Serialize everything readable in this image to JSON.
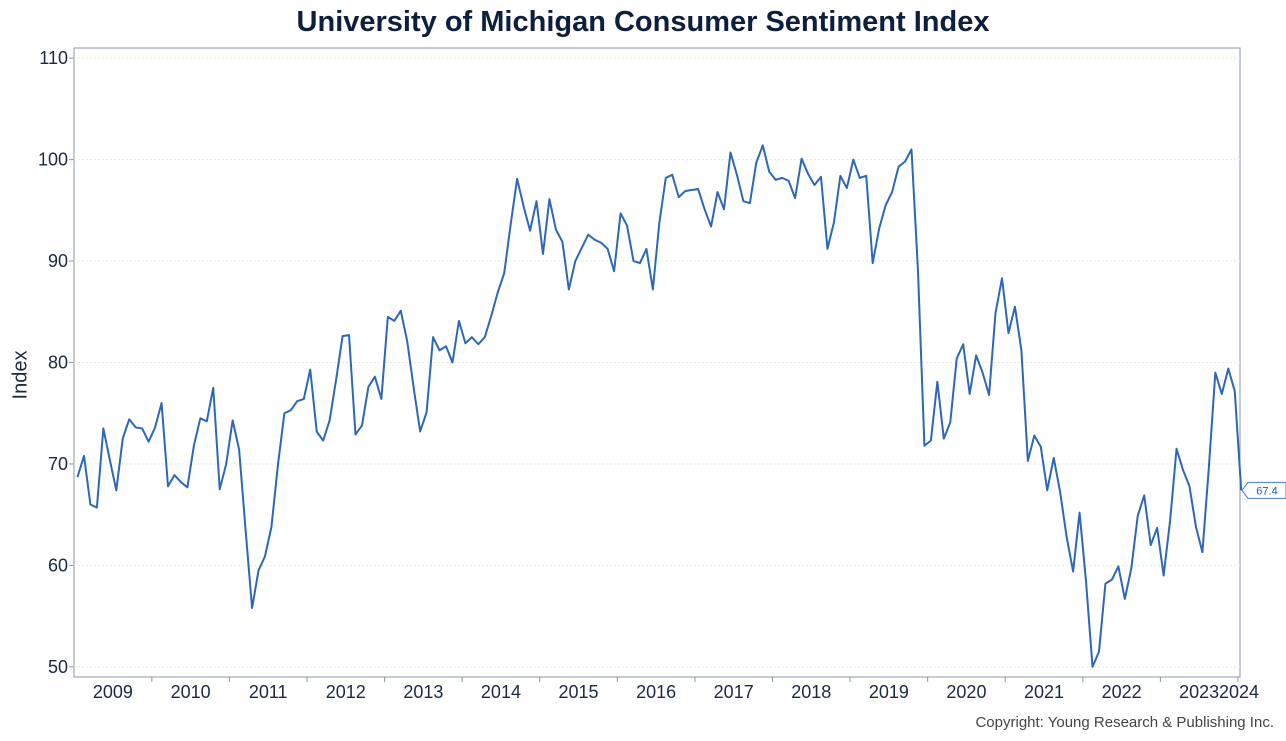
{
  "chart_data": {
    "type": "line",
    "title": "University of Michigan Consumer Sentiment Index",
    "xlabel": "",
    "ylabel": "Index",
    "ylim": [
      49,
      111
    ],
    "yticks": [
      50,
      60,
      70,
      80,
      90,
      100,
      110
    ],
    "xtick_labels": [
      "2009",
      "2010",
      "2011",
      "2012",
      "2013",
      "2014",
      "2015",
      "2016",
      "2017",
      "2018",
      "2019",
      "2020",
      "2021",
      "2022",
      "2023",
      "2024"
    ],
    "grid": true,
    "color": "#2e67b8",
    "end_label": "67.4",
    "series": [
      {
        "x_start": "2009-01",
        "frequency": "monthly",
        "values": [
          68.7,
          70.8,
          66.0,
          65.7,
          73.5,
          70.4,
          67.4,
          72.5,
          74.4,
          73.6,
          73.5,
          72.2,
          73.6,
          76.0,
          67.8,
          68.9,
          68.2,
          67.7,
          71.8,
          74.5,
          74.2,
          77.5,
          67.5,
          70.0,
          74.3,
          71.4,
          63.5,
          55.8,
          59.5,
          60.9,
          63.8,
          69.9,
          75.0,
          75.3,
          76.2,
          76.4,
          79.3,
          73.2,
          72.3,
          74.3,
          78.3,
          82.6,
          82.7,
          72.9,
          73.8,
          77.6,
          78.6,
          76.4,
          84.5,
          84.1,
          85.1,
          82.1,
          77.5,
          73.2,
          75.1,
          82.5,
          81.2,
          81.6,
          80.0,
          84.1,
          81.9,
          82.5,
          81.8,
          82.5,
          84.6,
          86.9,
          88.8,
          93.6,
          98.1,
          95.4,
          93.0,
          95.9,
          90.7,
          96.1,
          93.1,
          91.9,
          87.2,
          90.0,
          91.3,
          92.6,
          92.1,
          91.8,
          91.2,
          89.0,
          94.7,
          93.5,
          90.0,
          89.8,
          91.2,
          87.2,
          93.8,
          98.2,
          98.5,
          96.3,
          96.9,
          97.0,
          97.1,
          95.1,
          93.4,
          96.8,
          95.1,
          100.7,
          98.5,
          95.9,
          95.7,
          99.7,
          101.4,
          98.8,
          98.0,
          98.2,
          97.9,
          96.2,
          100.1,
          98.6,
          97.5,
          98.3,
          91.2,
          93.8,
          98.4,
          97.2,
          100.0,
          98.2,
          98.4,
          89.8,
          93.2,
          95.5,
          96.8,
          99.3,
          99.8,
          101.0,
          89.1,
          71.8,
          72.3,
          78.1,
          72.5,
          74.1,
          80.4,
          81.8,
          76.9,
          80.7,
          79.0,
          76.8,
          84.9,
          88.3,
          82.9,
          85.5,
          81.2,
          70.3,
          72.8,
          71.7,
          67.4,
          70.6,
          67.2,
          62.8,
          59.4,
          65.2,
          58.4,
          50.0,
          51.5,
          58.2,
          58.6,
          59.9,
          56.7,
          59.7,
          64.9,
          66.9,
          62.0,
          63.7,
          59.0,
          64.4,
          71.5,
          69.4,
          67.8,
          63.8,
          61.3,
          69.7,
          79.0,
          76.9,
          79.4,
          77.2,
          67.4
        ]
      }
    ]
  },
  "footer": {
    "copyright": "Copyright: Young Research & Publishing Inc."
  }
}
